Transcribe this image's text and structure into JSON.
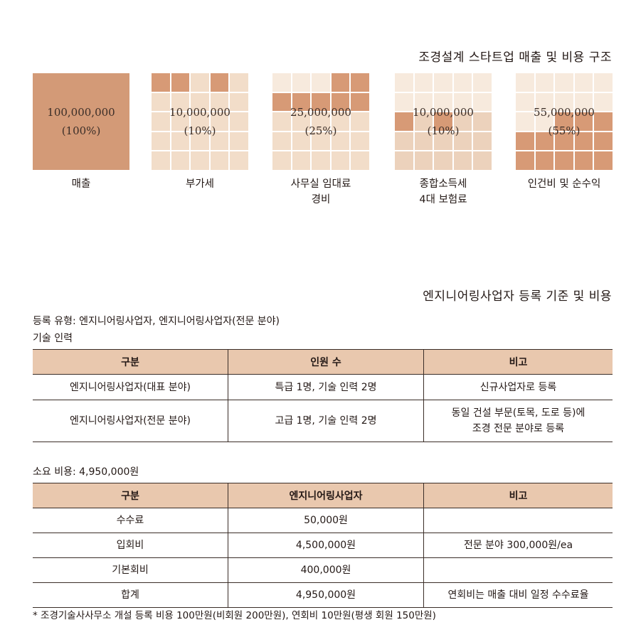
{
  "section1": {
    "title": "조경설계 스타트업 매출 및 비용 구조",
    "tiles": [
      {
        "amount": "100,000,000",
        "percent": "(100%)",
        "caption": [
          "매출",
          ""
        ],
        "share": 1.0
      },
      {
        "amount": "10,000,000",
        "percent": "(10%)",
        "caption": [
          "부가세",
          ""
        ],
        "share": 0.1
      },
      {
        "amount": "25,000,000",
        "percent": "(25%)",
        "caption": [
          "사무실 임대료",
          "경비"
        ],
        "share": 0.25
      },
      {
        "amount": "10,000,000",
        "percent": "(10%)",
        "caption": [
          "종합소득세",
          "4대 보험료"
        ],
        "share": 0.1
      },
      {
        "amount": "55,000,000",
        "percent": "(55%)",
        "caption": [
          "인건비 및 순수익",
          ""
        ],
        "share": 0.55
      }
    ]
  },
  "section2": {
    "title": "엔지니어링사업자 등록 기준 및 비용",
    "reg_type": "등록 유형: 엔지니어링사업자, 엔지니어링사업자(전문 분야)",
    "tech_label": "기술 인력",
    "table1": {
      "headers": [
        "구분",
        "인원 수",
        "비고"
      ],
      "rows": [
        {
          "c1": "엔지니어링사업자(대표 분야)",
          "c2": "특급 1명, 기술 인력 2명",
          "c3a": "신규사업자로 등록",
          "c3b": ""
        },
        {
          "c1": "엔지니어링사업자(전문 분야)",
          "c2": "고급 1명, 기술 인력 2명",
          "c3a": "동일 건설 부문(토목, 도로 등)에",
          "c3b": "조경 전문 분야로 등록"
        }
      ]
    },
    "cost_label": "소요 비용: 4,950,000원",
    "table2": {
      "headers": [
        "구분",
        "엔지니어링사업자",
        "비고"
      ],
      "rows": [
        {
          "c1": "수수료",
          "c2": "50,000원",
          "c3": ""
        },
        {
          "c1": "입회비",
          "c2": "4,500,000원",
          "c3": "전문 분야 300,000원/ea"
        },
        {
          "c1": "기본회비",
          "c2": "400,000원",
          "c3": ""
        },
        {
          "c1": "합계",
          "c2": "4,950,000원",
          "c3": "연회비는 매출 대비 일정 수수료율"
        }
      ]
    },
    "footnote": "* 조경기술사사무소 개설 등록 비용 100만원(비회원 200만원), 연회비 10만원(평생 회원 150만원)"
  }
}
